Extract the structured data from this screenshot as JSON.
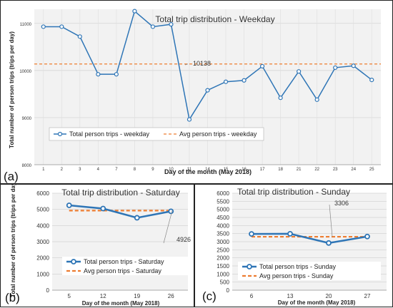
{
  "chart_data": [
    {
      "panel": "(a)",
      "type": "line",
      "title": "Total trip distribution - Weekday",
      "xlabel": "Day of the month (May 2018)",
      "ylabel": "Total number of person trips (trips per day)",
      "categories": [
        "1",
        "2",
        "3",
        "4",
        "7",
        "8",
        "9",
        "10",
        "11",
        "14",
        "15",
        "16",
        "17",
        "18",
        "21",
        "22",
        "23",
        "24",
        "25"
      ],
      "series": [
        {
          "name": "Total person trips - weekday",
          "values": [
            10930,
            10930,
            10720,
            9920,
            9920,
            11260,
            10930,
            10980,
            8960,
            9580,
            9760,
            9790,
            10090,
            9420,
            9980,
            9380,
            10060,
            10100,
            9800
          ],
          "color": "#2e75b6"
        },
        {
          "name": "Avg person trips - weekday",
          "values": [
            10138,
            10138,
            10138,
            10138,
            10138,
            10138,
            10138,
            10138,
            10138,
            10138,
            10138,
            10138,
            10138,
            10138,
            10138,
            10138,
            10138,
            10138,
            10138
          ],
          "color": "#ed7d31"
        }
      ],
      "yticks": [
        "8000",
        "9000",
        "10000",
        "11000"
      ],
      "ylim": [
        8000,
        11300
      ],
      "annotation": "10138",
      "grid": true,
      "legend": "lower-left"
    },
    {
      "panel": "(b)",
      "type": "line",
      "title": "Total trip distribution - Saturday",
      "xlabel": "Day of the month (May 2018)",
      "ylabel": "Total number of person trips (trips per day)",
      "categories": [
        "5",
        "12",
        "19",
        "26"
      ],
      "series": [
        {
          "name": "Total person trips - Saturday",
          "values": [
            5250,
            5050,
            4480,
            4880
          ],
          "color": "#2e75b6"
        },
        {
          "name": "Avg person trips - Saturday",
          "values": [
            4926,
            4926,
            4926,
            4926
          ],
          "color": "#ed7d31"
        }
      ],
      "yticks": [
        "0",
        "1000",
        "2000",
        "3000",
        "4000",
        "5000",
        "6000"
      ],
      "ylim": [
        0,
        6000
      ],
      "annotation": "4926",
      "grid": true,
      "legend": "lower-center"
    },
    {
      "panel": "(c)",
      "type": "line",
      "title": "Total trip distribution - Sunday",
      "xlabel": "Day of the month (May 2018)",
      "ylabel": "",
      "categories": [
        "6",
        "13",
        "20",
        "27"
      ],
      "series": [
        {
          "name": "Total person trips - Sunday",
          "values": [
            3480,
            3490,
            2920,
            3320
          ],
          "color": "#2e75b6"
        },
        {
          "name": "Avg person trips - Sunday",
          "values": [
            3306,
            3306,
            3306,
            3306
          ],
          "color": "#ed7d31"
        }
      ],
      "yticks": [
        "0",
        "500",
        "1000",
        "1500",
        "2000",
        "2500",
        "3000",
        "3500",
        "4000",
        "4500",
        "5000",
        "5500",
        "6000"
      ],
      "ylim": [
        0,
        6000
      ],
      "annotation": "3306",
      "grid": true,
      "legend": "lower-center"
    }
  ]
}
